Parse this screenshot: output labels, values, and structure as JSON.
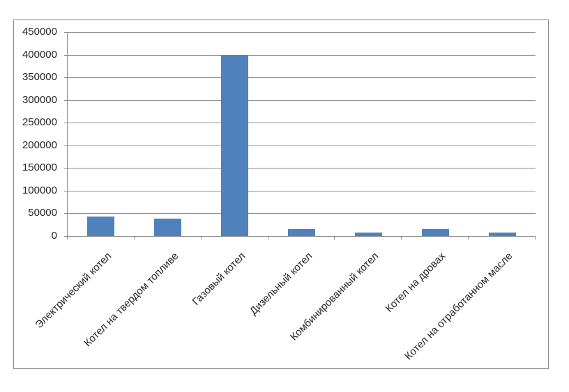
{
  "chart_data": {
    "type": "bar",
    "title": "",
    "categories": [
      "Электрический котел",
      "Котел на твердом топливе",
      "Газовый котел",
      "Дизельный котел",
      "Комбинированный котел",
      "Котел на дровах",
      "Котел на отработанном масле"
    ],
    "values": [
      43000,
      38000,
      400000,
      15000,
      7000,
      15000,
      7000
    ],
    "ylim": [
      0,
      450000
    ],
    "y_ticks": [
      0,
      50000,
      100000,
      150000,
      200000,
      250000,
      300000,
      350000,
      400000,
      450000
    ],
    "y_tick_labels": [
      "0",
      "50000",
      "100000",
      "150000",
      "200000",
      "250000",
      "300000",
      "350000",
      "400000",
      "450000"
    ],
    "xlabel": "",
    "ylabel": "",
    "grid": true,
    "legend": "none",
    "x_label_rotation_deg": 45,
    "colors": {
      "bar": "#4f81bd",
      "gridline": "#8c8c8c",
      "axis": "#8c8c8c",
      "frame_border": "#8c8c8c",
      "label_text": "#262626",
      "background": "#ffffff"
    }
  }
}
